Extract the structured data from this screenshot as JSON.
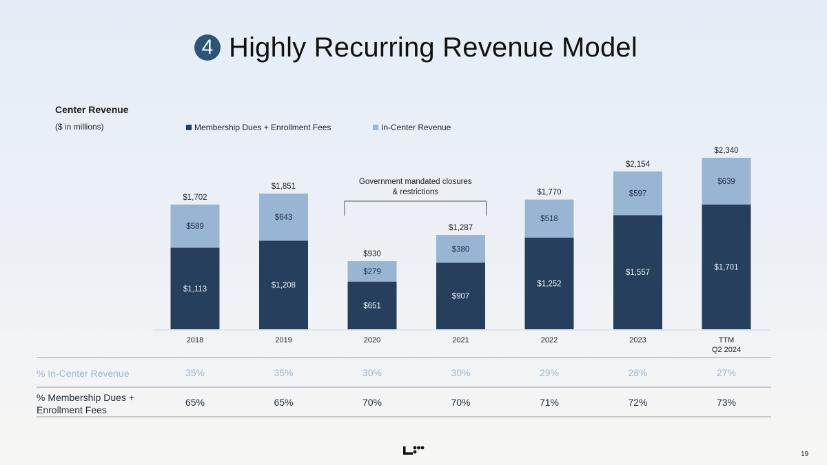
{
  "slide": {
    "badge_number": "4",
    "title": "Highly Recurring Revenue Model",
    "page_number": "19",
    "logo_icon": "company-logo-icon"
  },
  "colors": {
    "membership": "#253f5c",
    "in_center": "#98b5d4",
    "light_text": "#9db6d0",
    "dark_text": "#1e2a38",
    "badge": "#2b5576"
  },
  "chart_data": {
    "type": "bar",
    "stacked": true,
    "title": "Center Revenue",
    "subtitle": "($ in millions)",
    "xlabel": "",
    "ylabel": "",
    "ylim": [
      0,
      2340
    ],
    "grid": false,
    "legend_position": "top",
    "categories": [
      "2018",
      "2019",
      "2020",
      "2021",
      "2022",
      "2023",
      "TTM\nQ2 2024"
    ],
    "category_lines": [
      [
        "2018"
      ],
      [
        "2019"
      ],
      [
        "2020"
      ],
      [
        "2021"
      ],
      [
        "2022"
      ],
      [
        "2023"
      ],
      [
        "TTM",
        "Q2 2024"
      ]
    ],
    "series": [
      {
        "name": "Membership Dues + Enrollment Fees",
        "values": [
          1113,
          1208,
          651,
          907,
          1252,
          1557,
          1701
        ],
        "labels": [
          "$1,113",
          "$1,208",
          "$651",
          "$907",
          "$1,252",
          "$1,557",
          "$1,701"
        ]
      },
      {
        "name": "In-Center Revenue",
        "values": [
          589,
          643,
          279,
          380,
          518,
          597,
          639
        ],
        "labels": [
          "$589",
          "$643",
          "$279",
          "$380",
          "$518",
          "$597",
          "$639"
        ]
      }
    ],
    "totals": [
      1702,
      1851,
      930,
      1287,
      1770,
      2154,
      2340
    ],
    "total_labels": [
      "$1,702",
      "$1,851",
      "$930",
      "$1,287",
      "$1,770",
      "$2,154",
      "$2,340"
    ],
    "annotations": [
      {
        "text_lines": [
          "Government mandated closures",
          "& restrictions"
        ],
        "spans": [
          "2020",
          "2021"
        ],
        "type": "bracket"
      }
    ]
  },
  "table": {
    "rows": [
      {
        "label_lines": [
          "% In-Center Revenue"
        ],
        "values": [
          "35%",
          "35%",
          "30%",
          "30%",
          "29%",
          "28%",
          "27%"
        ],
        "style": "light"
      },
      {
        "label_lines": [
          "% Membership Dues +",
          "Enrollment Fees"
        ],
        "values": [
          "65%",
          "65%",
          "70%",
          "70%",
          "71%",
          "72%",
          "73%"
        ],
        "style": "dark"
      }
    ]
  }
}
